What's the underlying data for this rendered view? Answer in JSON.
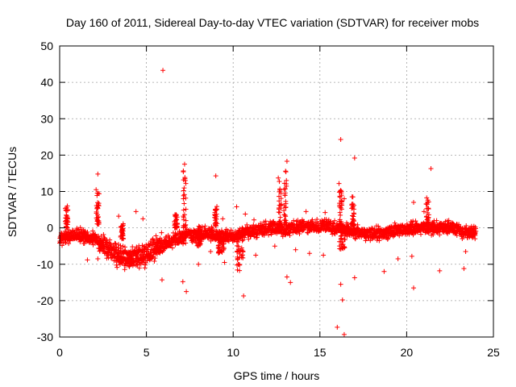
{
  "chart_data": {
    "type": "scatter",
    "title": "Day 160 of 2011, Sidereal Day-to-day VTEC variation (SDTVAR) for receiver mobs",
    "xlabel": "GPS time / hours",
    "ylabel": "SDTVAR / TECUs",
    "xlim": [
      0,
      25
    ],
    "ylim": [
      -30,
      50
    ],
    "xticks": [
      0,
      5,
      10,
      15,
      20,
      25
    ],
    "yticks": [
      -30,
      -20,
      -10,
      0,
      10,
      20,
      30,
      40,
      50
    ],
    "grid": true,
    "marker": "+",
    "marker_color": "#ff0000",
    "series": [
      {
        "name": "SDTVAR",
        "outliers": [
          [
            5.95,
            43.3
          ],
          [
            16.2,
            24.3
          ],
          [
            17.0,
            19.2
          ],
          [
            21.4,
            16.3
          ],
          [
            7.2,
            17.5
          ],
          [
            9.0,
            14.3
          ],
          [
            2.2,
            14.8
          ],
          [
            13.1,
            18.3
          ],
          [
            12.6,
            13.7
          ],
          [
            16.1,
            12.2
          ],
          [
            2.1,
            10.5
          ],
          [
            16.9,
            8.5
          ],
          [
            16.4,
            8.0
          ],
          [
            20.4,
            7.0
          ],
          [
            21.2,
            7.0
          ],
          [
            9.4,
            2.5
          ],
          [
            7.3,
            -17.5
          ],
          [
            7.1,
            -14.8
          ],
          [
            5.9,
            -14.3
          ],
          [
            10.6,
            -18.7
          ],
          [
            13.1,
            -13.5
          ],
          [
            13.3,
            -15.0
          ],
          [
            16.2,
            -15.5
          ],
          [
            16.3,
            -19.8
          ],
          [
            16.0,
            -27.3
          ],
          [
            16.4,
            -29.3
          ],
          [
            17.0,
            -13.7
          ],
          [
            20.4,
            -16.5
          ],
          [
            21.9,
            -11.8
          ],
          [
            23.3,
            -11.2
          ],
          [
            18.7,
            -12.0
          ],
          [
            11.3,
            -7.5
          ],
          [
            14.4,
            -7.0
          ],
          [
            15.2,
            -7.5
          ],
          [
            12.4,
            -5.0
          ],
          [
            9.5,
            -9.5
          ],
          [
            8.0,
            -10.0
          ],
          [
            6.5,
            -5.5
          ],
          [
            1.6,
            -8.8
          ],
          [
            2.2,
            -8.5
          ],
          [
            19.5,
            -8.5
          ],
          [
            20.3,
            -7.8
          ],
          [
            13.6,
            -6.0
          ],
          [
            23.4,
            -6.5
          ],
          [
            10.2,
            5.8
          ],
          [
            3.4,
            3.2
          ],
          [
            4.8,
            2.5
          ],
          [
            21.0,
            4.5
          ],
          [
            0.4,
            5.5
          ],
          [
            10.7,
            3.8
          ],
          [
            14.2,
            4.5
          ],
          [
            15.3,
            4.2
          ],
          [
            11.2,
            2.2
          ],
          [
            8.7,
            -6.5
          ],
          [
            4.4,
            4.5
          ]
        ],
        "spike_clusters": [
          [
            2.2,
            1.0,
            10.0
          ],
          [
            7.2,
            0.0,
            17.0
          ],
          [
            9.0,
            0.5,
            6.0
          ],
          [
            13.0,
            0.5,
            16.0
          ],
          [
            12.7,
            0.5,
            13.0
          ],
          [
            16.2,
            0.5,
            11.0
          ],
          [
            16.9,
            0.5,
            11.0
          ],
          [
            0.4,
            0.0,
            6.5
          ],
          [
            6.7,
            0.0,
            4.0
          ],
          [
            21.2,
            0.5,
            8.5
          ],
          [
            3.6,
            -3.0,
            1.5
          ]
        ],
        "trend": [
          [
            0.0,
            -3.0
          ],
          [
            0.5,
            -2.5
          ],
          [
            1.0,
            -1.5
          ],
          [
            1.5,
            -2.5
          ],
          [
            2.0,
            -3.0
          ],
          [
            2.5,
            -4.5
          ],
          [
            3.0,
            -6.5
          ],
          [
            3.5,
            -8.0
          ],
          [
            4.0,
            -8.5
          ],
          [
            4.5,
            -8.0
          ],
          [
            5.0,
            -7.5
          ],
          [
            5.5,
            -5.5
          ],
          [
            6.0,
            -4.5
          ],
          [
            6.5,
            -3.5
          ],
          [
            7.0,
            -2.5
          ],
          [
            7.5,
            -2.0
          ],
          [
            8.0,
            -1.5
          ],
          [
            8.5,
            -1.5
          ],
          [
            9.0,
            -2.0
          ],
          [
            9.5,
            -2.5
          ],
          [
            10.0,
            -2.5
          ],
          [
            10.5,
            -1.5
          ],
          [
            11.0,
            -1.0
          ],
          [
            11.5,
            -0.5
          ],
          [
            12.0,
            0.0
          ],
          [
            12.5,
            0.0
          ],
          [
            13.0,
            -0.5
          ],
          [
            13.5,
            0.0
          ],
          [
            14.0,
            0.5
          ],
          [
            14.5,
            0.5
          ],
          [
            15.0,
            0.5
          ],
          [
            15.5,
            0.5
          ],
          [
            16.0,
            0.0
          ],
          [
            16.5,
            -0.5
          ],
          [
            17.0,
            -1.0
          ],
          [
            17.5,
            -1.5
          ],
          [
            18.0,
            -1.5
          ],
          [
            18.5,
            -1.5
          ],
          [
            19.0,
            -1.0
          ],
          [
            19.5,
            -0.5
          ],
          [
            20.0,
            -0.5
          ],
          [
            20.5,
            0.0
          ],
          [
            21.0,
            0.0
          ],
          [
            21.5,
            0.0
          ],
          [
            22.0,
            0.0
          ],
          [
            22.5,
            0.0
          ],
          [
            23.0,
            -0.5
          ],
          [
            23.5,
            -1.5
          ],
          [
            24.0,
            -1.0
          ]
        ],
        "band_dips": [
          [
            4.0,
            -9.5
          ],
          [
            3.5,
            -9.0
          ],
          [
            10.4,
            -12.0
          ],
          [
            8.0,
            -5.0
          ],
          [
            16.3,
            -6.0
          ],
          [
            2.4,
            -6.5
          ],
          [
            5.6,
            -7.0
          ],
          [
            9.3,
            -7.0
          ]
        ]
      }
    ]
  }
}
